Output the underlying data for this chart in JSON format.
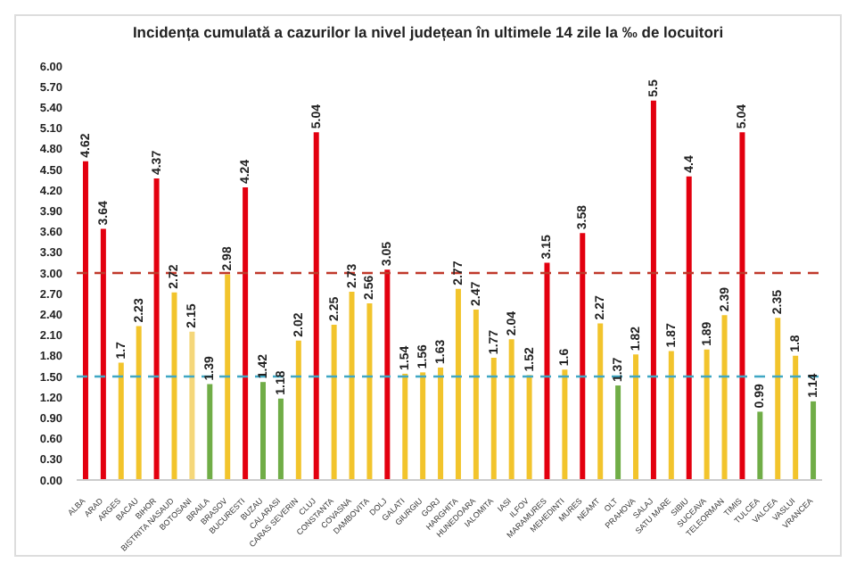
{
  "chart_data": {
    "type": "bar",
    "title": "Incidența cumulată a cazurilor la nivel județean în ultimele 14 zile la ‰ de locuitori",
    "categories": [
      "ALBA",
      "ARAD",
      "ARGES",
      "BACAU",
      "BIHOR",
      "BISTRITA NASAUD",
      "BOTOSANI",
      "BRAILA",
      "BRASOV",
      "BUCURESTI",
      "BUZAU",
      "CALARASI",
      "CARAS SEVERIN",
      "CLUJ",
      "CONSTANTA",
      "COVASNA",
      "DAMBOVITA",
      "DOLJ",
      "GALATI",
      "GIURGIU",
      "GORJ",
      "HARGHITA",
      "HUNEDOARA",
      "IALOMITA",
      "IASI",
      "ILFOV",
      "MARAMURES",
      "MEHEDINTI",
      "MURES",
      "NEAMT",
      "OLT",
      "PRAHOVA",
      "SALAJ",
      "SATU MARE",
      "SIBIU",
      "SUCEAVA",
      "TELEORMAN",
      "TIMIS",
      "TULCEA",
      "VALCEA",
      "VASLUI",
      "VRANCEA"
    ],
    "values": [
      4.62,
      3.64,
      1.7,
      2.23,
      4.37,
      2.72,
      2.15,
      1.39,
      2.98,
      4.24,
      1.42,
      1.18,
      2.02,
      5.04,
      2.25,
      2.73,
      2.56,
      3.05,
      1.54,
      1.56,
      1.63,
      2.77,
      2.47,
      1.77,
      2.04,
      1.52,
      3.15,
      1.6,
      3.58,
      2.27,
      1.37,
      1.82,
      5.5,
      1.87,
      4.4,
      1.89,
      2.39,
      5.04,
      0.99,
      2.35,
      1.8,
      1.14
    ],
    "colors": [
      "#e3000f",
      "#e3000f",
      "#f2c42c",
      "#f2c42c",
      "#e3000f",
      "#f2c42c",
      "#f5d77a",
      "#70ad47",
      "#f2c42c",
      "#e3000f",
      "#70ad47",
      "#70ad47",
      "#f2c42c",
      "#e3000f",
      "#f2c42c",
      "#f2c42c",
      "#f2c42c",
      "#e3000f",
      "#f2c42c",
      "#f2c42c",
      "#f2c42c",
      "#f2c42c",
      "#f2c42c",
      "#f2c42c",
      "#f2c42c",
      "#f2c42c",
      "#e3000f",
      "#f2c42c",
      "#e3000f",
      "#f2c42c",
      "#70ad47",
      "#f2c42c",
      "#e3000f",
      "#f2c42c",
      "#e3000f",
      "#f2c42c",
      "#f2c42c",
      "#e3000f",
      "#70ad47",
      "#f2c42c",
      "#f2c42c",
      "#70ad47"
    ],
    "ylim": [
      0,
      6
    ],
    "yticks": [
      {
        "value": 0,
        "label": "0.00"
      },
      {
        "value": 0.3,
        "label": "0.30"
      },
      {
        "value": 0.6,
        "label": "0.60"
      },
      {
        "value": 0.9,
        "label": "0.90"
      },
      {
        "value": 1.2,
        "label": "1.20"
      },
      {
        "value": 1.5,
        "label": "1.50"
      },
      {
        "value": 1.8,
        "label": "1.80"
      },
      {
        "value": 2.1,
        "label": "2.10"
      },
      {
        "value": 2.4,
        "label": "2.40"
      },
      {
        "value": 2.7,
        "label": "2.70"
      },
      {
        "value": 3,
        "label": "3.00"
      },
      {
        "value": 3.3,
        "label": "3.30"
      },
      {
        "value": 3.6,
        "label": "3.60"
      },
      {
        "value": 3.9,
        "label": "3.90"
      },
      {
        "value": 4.2,
        "label": "4.20"
      },
      {
        "value": 4.5,
        "label": "4.50"
      },
      {
        "value": 4.8,
        "label": "4.80"
      },
      {
        "value": 5.1,
        "label": "5.10"
      },
      {
        "value": 5.4,
        "label": "5.40"
      },
      {
        "value": 5.7,
        "label": "5.70"
      },
      {
        "value": 6,
        "label": "6.00"
      }
    ],
    "ref_lines": [
      {
        "axis": "y",
        "value": 3,
        "color": "#c0392b",
        "line_style": "dashed"
      },
      {
        "axis": "y",
        "value": 1.5,
        "color": "#3fa7c4",
        "line_style": "dashed"
      }
    ],
    "data_labels": true,
    "grid": false,
    "legend": false
  }
}
